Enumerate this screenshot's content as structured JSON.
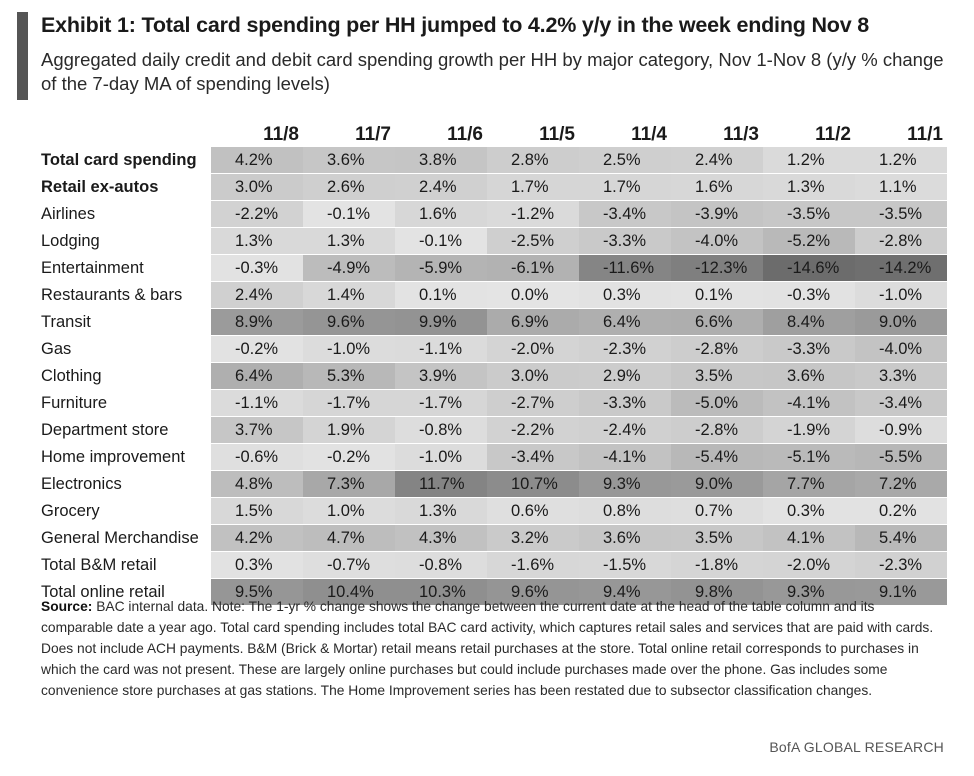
{
  "exhibit": {
    "title": "Exhibit 1: Total card spending per HH jumped to 4.2% y/y in the week ending Nov 8",
    "subtitle": "Aggregated daily credit and debit card spending growth per HH by major category, Nov 1-Nov 8 (y/y % change of the 7-day MA of spending levels)"
  },
  "table": {
    "columns": [
      "11/8",
      "11/7",
      "11/6",
      "11/5",
      "11/4",
      "11/3",
      "11/2",
      "11/1"
    ],
    "rows": [
      {
        "label": "Total card spending",
        "bold": true,
        "values": [
          "4.2%",
          "3.6%",
          "3.8%",
          "2.8%",
          "2.5%",
          "2.4%",
          "1.2%",
          "1.2%"
        ]
      },
      {
        "label": "Retail ex-autos",
        "bold": true,
        "values": [
          "3.0%",
          "2.6%",
          "2.4%",
          "1.7%",
          "1.7%",
          "1.6%",
          "1.3%",
          "1.1%"
        ]
      },
      {
        "label": "Airlines",
        "bold": false,
        "values": [
          "-2.2%",
          "-0.1%",
          "1.6%",
          "-1.2%",
          "-3.4%",
          "-3.9%",
          "-3.5%",
          "-3.5%"
        ]
      },
      {
        "label": "Lodging",
        "bold": false,
        "values": [
          "1.3%",
          "1.3%",
          "-0.1%",
          "-2.5%",
          "-3.3%",
          "-4.0%",
          "-5.2%",
          "-2.8%"
        ]
      },
      {
        "label": "Entertainment",
        "bold": false,
        "values": [
          "-0.3%",
          "-4.9%",
          "-5.9%",
          "-6.1%",
          "-11.6%",
          "-12.3%",
          "-14.6%",
          "-14.2%"
        ]
      },
      {
        "label": "Restaurants & bars",
        "bold": false,
        "values": [
          "2.4%",
          "1.4%",
          "0.1%",
          "0.0%",
          "0.3%",
          "0.1%",
          "-0.3%",
          "-1.0%"
        ]
      },
      {
        "label": "Transit",
        "bold": false,
        "values": [
          "8.9%",
          "9.6%",
          "9.9%",
          "6.9%",
          "6.4%",
          "6.6%",
          "8.4%",
          "9.0%"
        ]
      },
      {
        "label": "Gas",
        "bold": false,
        "values": [
          "-0.2%",
          "-1.0%",
          "-1.1%",
          "-2.0%",
          "-2.3%",
          "-2.8%",
          "-3.3%",
          "-4.0%"
        ]
      },
      {
        "label": "Clothing",
        "bold": false,
        "values": [
          "6.4%",
          "5.3%",
          "3.9%",
          "3.0%",
          "2.9%",
          "3.5%",
          "3.6%",
          "3.3%"
        ]
      },
      {
        "label": "Furniture",
        "bold": false,
        "values": [
          "-1.1%",
          "-1.7%",
          "-1.7%",
          "-2.7%",
          "-3.3%",
          "-5.0%",
          "-4.1%",
          "-3.4%"
        ]
      },
      {
        "label": "Department store",
        "bold": false,
        "values": [
          "3.7%",
          "1.9%",
          "-0.8%",
          "-2.2%",
          "-2.4%",
          "-2.8%",
          "-1.9%",
          "-0.9%"
        ]
      },
      {
        "label": "Home improvement",
        "bold": false,
        "values": [
          "-0.6%",
          "-0.2%",
          "-1.0%",
          "-3.4%",
          "-4.1%",
          "-5.4%",
          "-5.1%",
          "-5.5%"
        ]
      },
      {
        "label": "Electronics",
        "bold": false,
        "values": [
          "4.8%",
          "7.3%",
          "11.7%",
          "10.7%",
          "9.3%",
          "9.0%",
          "7.7%",
          "7.2%"
        ]
      },
      {
        "label": "Grocery",
        "bold": false,
        "values": [
          "1.5%",
          "1.0%",
          "1.3%",
          "0.6%",
          "0.8%",
          "0.7%",
          "0.3%",
          "0.2%"
        ]
      },
      {
        "label": "General Merchandise",
        "bold": false,
        "values": [
          "4.2%",
          "4.7%",
          "4.3%",
          "3.2%",
          "3.6%",
          "3.5%",
          "4.1%",
          "5.4%"
        ]
      },
      {
        "label": "Total B&M retail",
        "bold": false,
        "values": [
          "0.3%",
          "-0.7%",
          "-0.8%",
          "-1.6%",
          "-1.5%",
          "-1.8%",
          "-2.0%",
          "-2.3%"
        ]
      },
      {
        "label": "Total online retail",
        "bold": false,
        "values": [
          "9.5%",
          "10.4%",
          "10.3%",
          "9.6%",
          "9.4%",
          "9.8%",
          "9.3%",
          "9.1%"
        ]
      }
    ]
  },
  "footnote": {
    "source_label": "Source:",
    "text": "BAC internal data. Note: The 1-yr % change shows the change between the current date at the head of the table column and its comparable date a year ago. Total card spending includes total BAC card activity, which captures retail sales and services that are paid with cards. Does not include ACH payments. B&M (Brick & Mortar) retail means retail purchases at the store. Total online retail corresponds to purchases in which the card was not present. These are largely online purchases but could include purchases made over the phone. Gas includes some convenience store purchases at gas stations. The Home Improvement series has been restated due to subsector classification changes."
  },
  "brand": "BofA GLOBAL RESEARCH"
}
